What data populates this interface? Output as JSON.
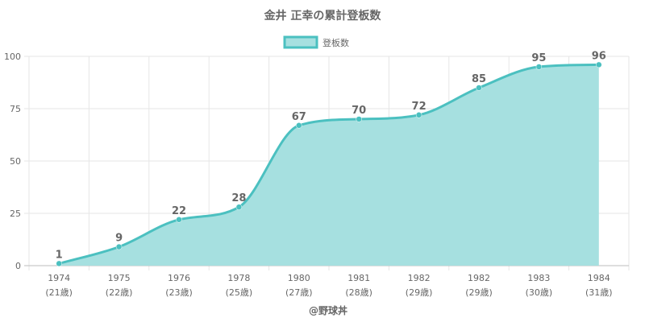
{
  "chart_data": {
    "type": "area",
    "title": "金井 正幸の累計登板数",
    "legend": {
      "label": "登板数",
      "position": "top"
    },
    "categories": [
      "1974",
      "1975",
      "1976",
      "1978",
      "1980",
      "1981",
      "1982",
      "1982",
      "1983",
      "1984"
    ],
    "ages": [
      "(21歳)",
      "(22歳)",
      "(23歳)",
      "(25歳)",
      "(27歳)",
      "(28歳)",
      "(29歳)",
      "(29歳)",
      "(30歳)",
      "(31歳)"
    ],
    "series": [
      {
        "name": "登板数",
        "values": [
          1,
          9,
          22,
          28,
          67,
          70,
          72,
          85,
          95,
          96
        ]
      }
    ],
    "ylim": [
      0,
      100
    ],
    "yticks": [
      0,
      25,
      50,
      75,
      100
    ],
    "grid": true,
    "colors": {
      "line": "#4bc0c0",
      "fill": "#a6e0e0",
      "grid": "#e6e6e6",
      "text": "#666666"
    }
  },
  "footer": "@野球丼"
}
